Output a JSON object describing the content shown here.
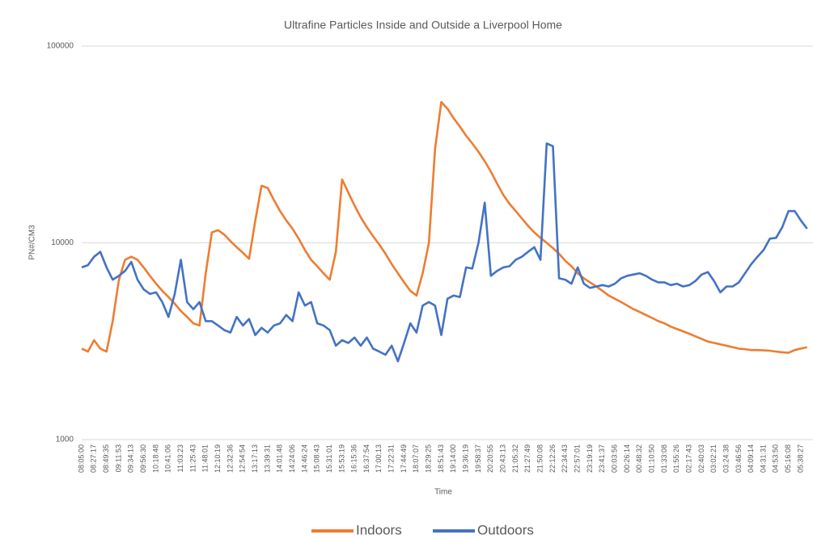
{
  "chart_data": {
    "type": "line",
    "title": "Ultrafine Particles Inside and Outside a Liverpool Home",
    "x_label": "Time",
    "y_label": "PN#/CM3",
    "log_scale": true,
    "grid": true,
    "legend": "bottom",
    "ylim": [
      1000,
      100000
    ],
    "yticks": [
      1000,
      10000,
      100000
    ],
    "categories": [
      "08:05:00",
      null,
      "08:27:17",
      null,
      "08:49:35",
      null,
      "09:11:53",
      null,
      "09:34:13",
      null,
      "09:56:30",
      null,
      "10:18:48",
      null,
      "10:41:06",
      null,
      "11:03:23",
      null,
      "11:25:43",
      null,
      "11:48:01",
      null,
      "12:10:19",
      null,
      "12:32:36",
      null,
      "12:54:54",
      null,
      "13:17:13",
      null,
      "13:39:31",
      null,
      "14:01:48",
      null,
      "14:24:06",
      null,
      "14:46:24",
      null,
      "15:08:43",
      null,
      "15:31:01",
      null,
      "15:53:19",
      null,
      "16:15:36",
      null,
      "16:37:54",
      null,
      "17:00:13",
      null,
      "17:22:31",
      null,
      "17:44:49",
      null,
      "18:07:07",
      null,
      "18:29:25",
      null,
      "18:51:43",
      null,
      "19:14:00",
      null,
      "19:36:19",
      null,
      "19:58:37",
      null,
      "20:20:55",
      null,
      "20:43:13",
      null,
      "21:05:32",
      null,
      "21:27:49",
      null,
      "21:50:08",
      null,
      "22:12:26",
      null,
      "22:34:43",
      null,
      "22:57:01",
      null,
      "23:19:19",
      null,
      "23:41:37",
      null,
      "00:03:56",
      null,
      "00:26:14",
      null,
      "00:48:32",
      null,
      "01:10:50",
      null,
      "01:33:08",
      null,
      "01:55:26",
      null,
      "02:17:43",
      null,
      "02:40:03",
      null,
      "03:02:21",
      null,
      "03:24:38",
      null,
      "03:46:56",
      null,
      "04:09:14",
      null,
      "04:31:31",
      null,
      "04:53:50",
      null,
      "05:16:08",
      null,
      "05:38:27",
      null
    ],
    "series": [
      {
        "name": "Indoors",
        "color": "#ED7D31",
        "values": [
          2900,
          2800,
          3200,
          2900,
          2800,
          4000,
          6500,
          8200,
          8500,
          8200,
          7500,
          6800,
          6200,
          5700,
          5300,
          4900,
          4500,
          4200,
          3900,
          3800,
          7000,
          11300,
          11600,
          11000,
          10200,
          9500,
          8900,
          8300,
          13000,
          19500,
          19000,
          16500,
          14500,
          13000,
          11800,
          10500,
          9200,
          8200,
          7600,
          7000,
          6500,
          9000,
          21000,
          18000,
          15500,
          13500,
          12000,
          10800,
          9800,
          8800,
          7800,
          7000,
          6300,
          5700,
          5400,
          7000,
          10000,
          30000,
          52000,
          48000,
          43000,
          39000,
          35000,
          32000,
          29000,
          26000,
          23000,
          20000,
          17500,
          15800,
          14500,
          13300,
          12200,
          11300,
          10600,
          10000,
          9400,
          8800,
          8100,
          7600,
          7000,
          6600,
          6300,
          6000,
          5700,
          5400,
          5200,
          5000,
          4800,
          4600,
          4450,
          4300,
          4150,
          4000,
          3900,
          3750,
          3650,
          3550,
          3450,
          3350,
          3250,
          3150,
          3100,
          3050,
          3000,
          2950,
          2900,
          2880,
          2850,
          2850,
          2840,
          2830,
          2800,
          2780,
          2760,
          2850,
          2900,
          2950
        ]
      },
      {
        "name": "Outdoors",
        "color": "#4472C4",
        "values": [
          7500,
          7700,
          8500,
          9000,
          7500,
          6500,
          6800,
          7200,
          8000,
          6500,
          5800,
          5500,
          5600,
          5000,
          4200,
          5500,
          8200,
          5000,
          4600,
          5000,
          4000,
          4000,
          3800,
          3600,
          3500,
          4200,
          3800,
          4100,
          3400,
          3700,
          3500,
          3800,
          3900,
          4300,
          4000,
          5600,
          4800,
          5000,
          3900,
          3800,
          3600,
          3000,
          3200,
          3100,
          3300,
          3000,
          3300,
          2900,
          2800,
          2700,
          3000,
          2500,
          3100,
          3900,
          3500,
          4800,
          5000,
          4800,
          3400,
          5200,
          5400,
          5300,
          7500,
          7400,
          10000,
          16000,
          6800,
          7200,
          7500,
          7600,
          8200,
          8500,
          9000,
          9500,
          8200,
          32000,
          31000,
          6600,
          6500,
          6200,
          7500,
          6200,
          5900,
          6000,
          6100,
          6000,
          6200,
          6600,
          6800,
          6900,
          7000,
          6800,
          6500,
          6300,
          6300,
          6100,
          6200,
          6000,
          6100,
          6400,
          6900,
          7100,
          6400,
          5600,
          6000,
          6000,
          6300,
          7000,
          7800,
          8500,
          9200,
          10500,
          10600,
          12000,
          14500,
          14500,
          13000,
          11800
        ]
      }
    ]
  }
}
